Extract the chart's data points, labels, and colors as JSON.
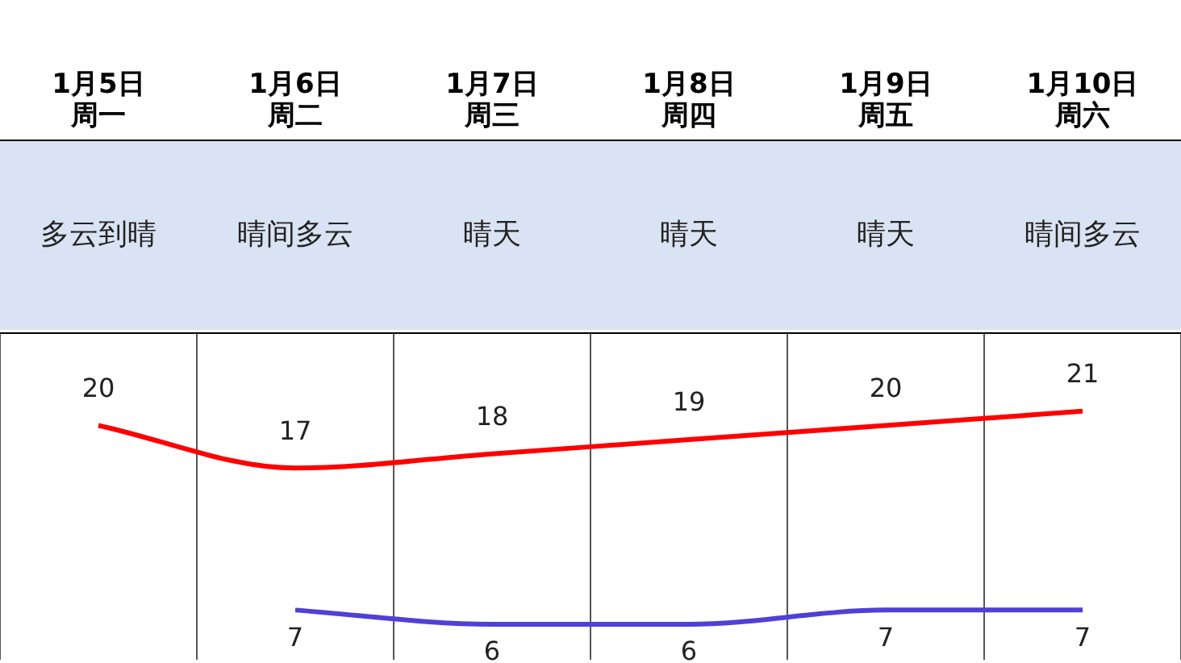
{
  "chart_data": {
    "type": "line",
    "categories": [
      "1月5日周一",
      "1月6日周二",
      "1月7日周三",
      "1月8日周四",
      "1月9日周五",
      "1月10日周六"
    ],
    "annotations": [
      "多云到晴",
      "晴间多云",
      "晴天",
      "晴天",
      "晴天",
      "晴间多云"
    ],
    "series": [
      {
        "color": "#ff0000",
        "values": [
          20,
          17,
          18,
          19,
          20,
          21
        ]
      },
      {
        "color": "#5040d8",
        "values": [
          null,
          7,
          6,
          6,
          7,
          7
        ]
      }
    ],
    "ylim": [
      3.5,
      26.5
    ],
    "tick_labels": "x",
    "grid": "x",
    "data_labels": true,
    "legend": false,
    "marker": "none",
    "line_style": "solid"
  }
}
